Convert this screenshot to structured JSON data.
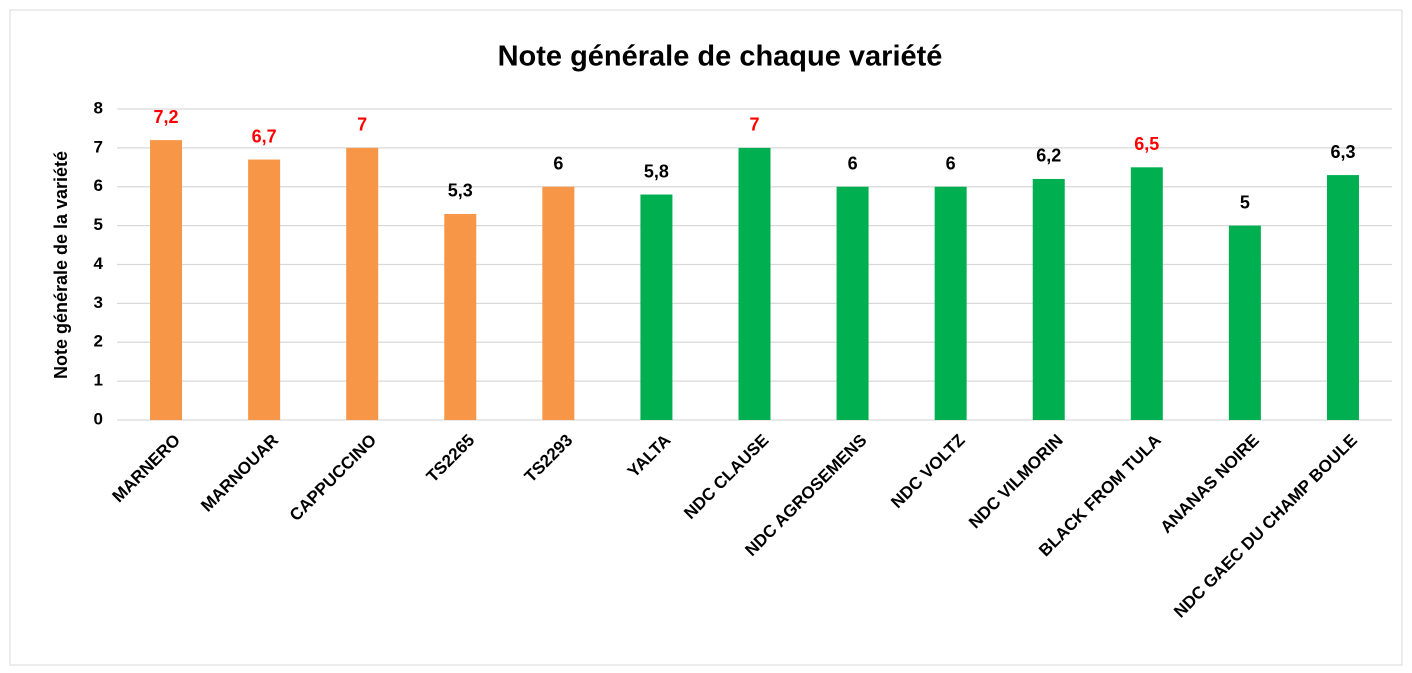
{
  "chart_data": {
    "type": "bar",
    "title": "Note générale de chaque variété",
    "ylabel": "Note générale de la variété",
    "categories": [
      "MARNERO",
      "MARNOUAR",
      "CAPPUCCINO",
      "TS2265",
      "TS2293",
      "YALTA",
      "NDC CLAUSE",
      "NDC AGROSEMENS",
      "NDC VOLTZ",
      "NDC VILMORIN",
      "BLACK FROM TULA",
      "ANANAS NOIRE",
      "NDC GAEC DU CHAMP BOULE"
    ],
    "values": [
      7.2,
      6.7,
      7,
      5.3,
      6,
      5.8,
      7,
      6,
      6,
      6.2,
      6.5,
      5,
      6.3
    ],
    "value_labels": [
      "7,2",
      "6,7",
      "7",
      "5,3",
      "6",
      "5,8",
      "7",
      "6",
      "6",
      "6,2",
      "6,5",
      "5",
      "6,3"
    ],
    "colors": [
      "#f79646",
      "#f79646",
      "#f79646",
      "#f79646",
      "#f79646",
      "#00b050",
      "#00b050",
      "#00b050",
      "#00b050",
      "#00b050",
      "#00b050",
      "#00b050",
      "#00b050"
    ],
    "label_colors": [
      "#ff0000",
      "#ff0000",
      "#ff0000",
      "#000000",
      "#000000",
      "#000000",
      "#ff0000",
      "#000000",
      "#000000",
      "#000000",
      "#ff0000",
      "#000000",
      "#000000"
    ],
    "ylim": [
      0,
      8
    ],
    "yticks": [
      0,
      1,
      2,
      3,
      4,
      5,
      6,
      7,
      8
    ],
    "grid": true
  }
}
